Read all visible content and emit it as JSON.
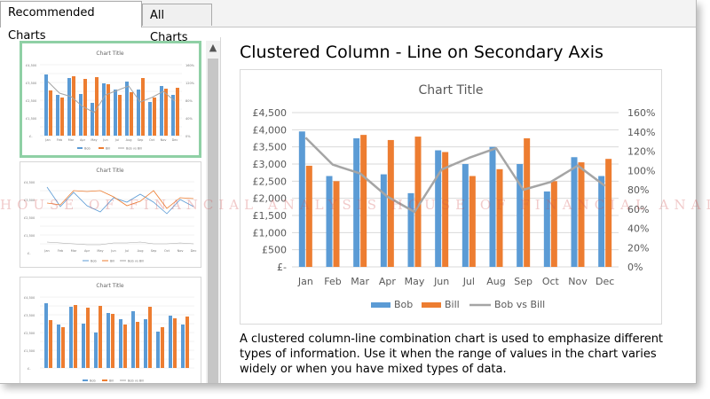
{
  "tabs": [
    {
      "label": "Recommended Charts",
      "active": true
    },
    {
      "label": "All Charts",
      "active": false
    }
  ],
  "thumbnails": [
    {
      "title": "Chart Title",
      "type": "combo"
    },
    {
      "title": "Chart Title",
      "type": "line"
    },
    {
      "title": "Chart Title",
      "type": "bar"
    }
  ],
  "scrollbar": {
    "up_icon": "▲"
  },
  "preview": {
    "title": "Clustered Column - Line on Secondary Axis",
    "description": "A clustered column-line combination chart is used to emphasize different types of information. Use it when the range of values in the chart varies widely or when you have mixed types of data."
  },
  "watermark": "HOUSE OF FINANCIAL ANALYSIS HOUSE OF FINANCIAL ANALYSIS HOUSE OF",
  "chart_data": {
    "type": "bar",
    "title": "Chart Title",
    "categories": [
      "Jan",
      "Feb",
      "Mar",
      "Apr",
      "May",
      "Jun",
      "Jul",
      "Aug",
      "Sep",
      "Oct",
      "Nov",
      "Dec"
    ],
    "series": [
      {
        "name": "Bob",
        "kind": "column",
        "axis": "primary",
        "color": "#5b9bd5",
        "values": [
          3950,
          2650,
          3750,
          2700,
          2150,
          3400,
          3000,
          3500,
          3000,
          2200,
          3200,
          2650
        ]
      },
      {
        "name": "Bill",
        "kind": "column",
        "axis": "primary",
        "color": "#ed7d31",
        "values": [
          2950,
          2500,
          3850,
          3700,
          3800,
          3350,
          2650,
          2850,
          3750,
          2500,
          3050,
          3150
        ]
      },
      {
        "name": "Bob vs Bill",
        "kind": "line",
        "axis": "secondary",
        "color": "#a5a5a5",
        "values": [
          1.34,
          1.06,
          0.97,
          0.73,
          0.57,
          1.01,
          1.13,
          1.23,
          0.8,
          0.88,
          1.05,
          0.84
        ]
      }
    ],
    "y_ticks": [
      "£4,500",
      "£4,000",
      "£3,500",
      "£3,000",
      "£2,500",
      "£2,000",
      "£1,500",
      "£1,000",
      "£500",
      "£-"
    ],
    "y2_ticks": [
      "160%",
      "140%",
      "120%",
      "100%",
      "80%",
      "60%",
      "40%",
      "20%",
      "0%"
    ],
    "ylim": [
      0,
      4500
    ],
    "y2lim": [
      0,
      1.6
    ],
    "legend_position": "bottom",
    "grid": true
  }
}
